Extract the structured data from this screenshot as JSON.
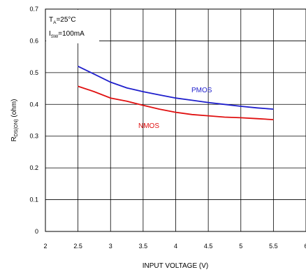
{
  "chart_data": {
    "type": "line",
    "xlabel": "INPUT VOLTAGE (V)",
    "ylabel_main": "R",
    "ylabel_sub": "DS(ON)",
    "ylabel_unit": " (ohm)",
    "xlim": [
      2,
      6
    ],
    "ylim": [
      0,
      0.7
    ],
    "x_ticks": [
      "2",
      "2.5",
      "3",
      "3.5",
      "4",
      "4.5",
      "5",
      "5.5",
      "6"
    ],
    "y_ticks": [
      "0",
      "0.1",
      "0.2",
      "0.3",
      "0.4",
      "0.5",
      "0.6",
      "0.7"
    ],
    "grid": true,
    "annotations": {
      "ta_main": "T",
      "ta_sub": "A",
      "ta_val": "=25°C",
      "isw_main": "I",
      "isw_sub": "SW",
      "isw_val": "=100mA"
    },
    "series": [
      {
        "name": "PMOS",
        "color": "#1f1fcc",
        "x": [
          2.5,
          2.75,
          3.0,
          3.25,
          3.5,
          3.75,
          4.0,
          4.25,
          4.5,
          4.75,
          5.0,
          5.25,
          5.5
        ],
        "y": [
          0.52,
          0.495,
          0.47,
          0.452,
          0.44,
          0.43,
          0.42,
          0.413,
          0.406,
          0.4,
          0.394,
          0.389,
          0.385
        ]
      },
      {
        "name": "NMOS",
        "color": "#e01010",
        "x": [
          2.5,
          2.75,
          3.0,
          3.25,
          3.5,
          3.75,
          4.0,
          4.25,
          4.5,
          4.75,
          5.0,
          5.25,
          5.5
        ],
        "y": [
          0.457,
          0.44,
          0.42,
          0.41,
          0.397,
          0.385,
          0.375,
          0.368,
          0.364,
          0.36,
          0.358,
          0.355,
          0.352
        ]
      }
    ]
  }
}
